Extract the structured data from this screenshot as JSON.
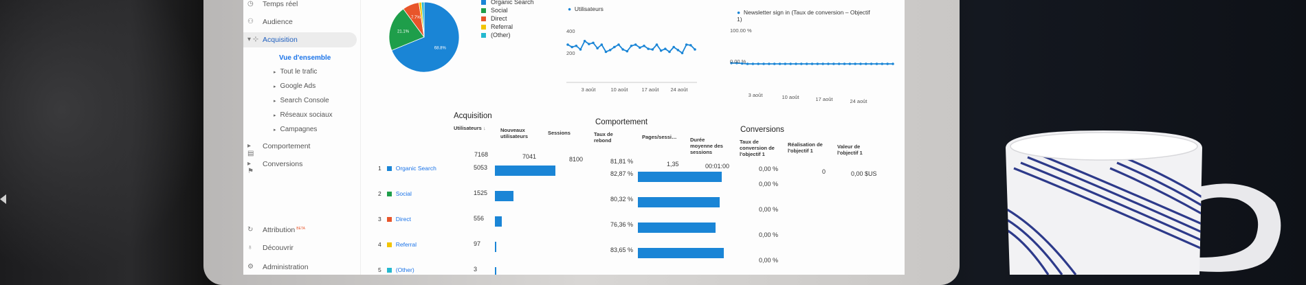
{
  "sidebar": {
    "items": [
      {
        "label": "Temps réel",
        "icon": "clock-icon"
      },
      {
        "label": "Audience",
        "icon": "person-icon"
      },
      {
        "label": "Acquisition",
        "icon": "acquisition-icon"
      },
      {
        "label": "Comportement",
        "icon": "layout-icon"
      },
      {
        "label": "Conversions",
        "icon": "flag-icon"
      },
      {
        "label": "Attribution",
        "icon": "attribution-icon",
        "badge": "BETA"
      },
      {
        "label": "Découvrir",
        "icon": "lightbulb-icon"
      },
      {
        "label": "Administration",
        "icon": "gear-icon"
      }
    ],
    "subitems": [
      "Vue d'ensemble",
      "Tout le trafic",
      "Google Ads",
      "Search Console",
      "Réseaux sociaux",
      "Campagnes"
    ]
  },
  "pie": {
    "slices": [
      {
        "name": "Organic Search",
        "value": 68.8,
        "label": "68.8%",
        "color": "#1a85d6"
      },
      {
        "name": "Social",
        "value": 21.1,
        "label": "21.1%",
        "color": "#1e9e4a"
      },
      {
        "name": "Direct",
        "value": 7.7,
        "label": "7.7%",
        "color": "#e8552a"
      },
      {
        "name": "Referral",
        "value": 1.2,
        "label": "",
        "color": "#f2c400"
      },
      {
        "name": "(Other)",
        "value": 1.2,
        "label": "",
        "color": "#24b9cf"
      }
    ]
  },
  "chart_data": [
    {
      "type": "line",
      "series": [
        {
          "name": "Utilisateurs",
          "values": [
            300,
            280,
            290,
            260,
            330,
            305,
            315,
            270,
            300,
            240,
            255,
            280,
            300,
            260,
            245,
            290,
            300,
            275,
            290,
            265,
            260,
            300,
            250,
            265,
            240,
            280,
            255,
            230,
            300,
            295,
            260
          ]
        }
      ],
      "yticks": [
        "400",
        "200"
      ],
      "ylim": [
        100,
        500
      ],
      "xticks": [
        "3 août",
        "10 août",
        "17 août",
        "24 août"
      ]
    },
    {
      "type": "line",
      "series": [
        {
          "name": "Newsletter sign in (Taux de conversion – Objectif 1)",
          "values": [
            1,
            1,
            0.5,
            0,
            0,
            0,
            0,
            0,
            0,
            0,
            0,
            0,
            0,
            0,
            0,
            0,
            0,
            0,
            0,
            0,
            0,
            0,
            0,
            0,
            0,
            0,
            0,
            0,
            0,
            0,
            0
          ]
        }
      ],
      "yticks": [
        "100.00 %",
        "0.00 %"
      ],
      "xticks": [
        "3 août",
        "10 août",
        "17 août",
        "24 août"
      ]
    }
  ],
  "line1": {
    "legend": "Utilisateurs"
  },
  "line2": {
    "legend": "Newsletter sign in (Taux de conversion – Objectif 1)"
  },
  "table": {
    "acquisition_title": "Acquisition",
    "comportement_title": "Comportement",
    "conversions_title": "Conversions",
    "columns": {
      "utilisateurs": "Utilisateurs",
      "nouveaux": "Nouveaux utilisateurs",
      "sessions": "Sessions",
      "taux_rebond": "Taux de rebond",
      "pages_session": "Pages/sessi…",
      "duree": "Durée moyenne des sessions",
      "taux_conv": "Taux de conversion de l'objectif 1",
      "realisation": "Réalisation de l'objectif 1",
      "valeur": "Valeur de l'objectif 1"
    },
    "totals": {
      "utilisateurs": "7168",
      "nouveaux": "7041",
      "sessions": "8100",
      "taux_rebond": "81,81 %",
      "pages_session": "1,35",
      "duree": "00:01:00",
      "taux_conv": "0,00 %",
      "realisation": "0",
      "valeur": "0,00 $US"
    },
    "rows": [
      {
        "n": "1",
        "name": "Organic Search",
        "color": "#1a85d6",
        "users": "5053",
        "users_share": 0.705,
        "rebond": "82,87 %",
        "rebond_share": 0.82,
        "conv": "0,00 %"
      },
      {
        "n": "2",
        "name": "Social",
        "color": "#1e9e4a",
        "users": "1525",
        "users_share": 0.213,
        "rebond": "80,32 %",
        "rebond_share": 0.8,
        "conv": "0,00 %"
      },
      {
        "n": "3",
        "name": "Direct",
        "color": "#e8552a",
        "users": "556",
        "users_share": 0.078,
        "rebond": "76,36 %",
        "rebond_share": 0.76,
        "conv": "0,00 %"
      },
      {
        "n": "4",
        "name": "Referral",
        "color": "#f2c400",
        "users": "97",
        "users_share": 0.014,
        "rebond": "83,65 %",
        "rebond_share": 0.84,
        "conv": "0,00 %"
      },
      {
        "n": "5",
        "name": "(Other)",
        "color": "#24b9cf",
        "users": "3",
        "users_share": 0.0004,
        "rebond": "",
        "rebond_share": 0,
        "conv": ""
      }
    ]
  }
}
